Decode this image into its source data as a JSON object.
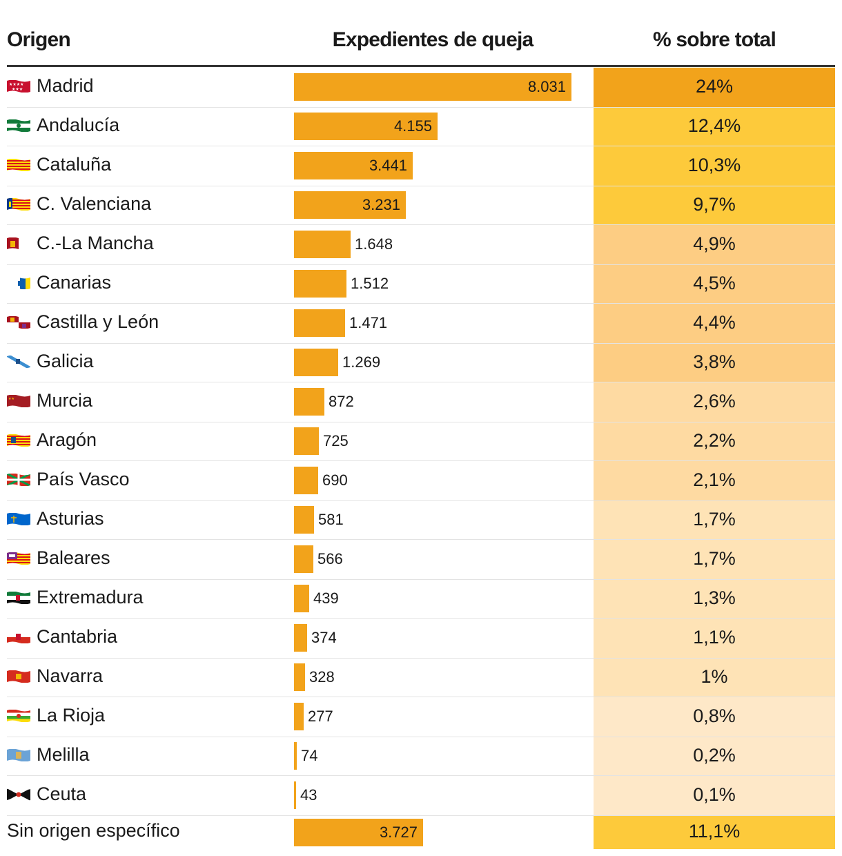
{
  "headers": {
    "origin": "Origen",
    "expedientes": "Expedientes de queja",
    "percent": "% sobre total"
  },
  "chart_data": {
    "type": "table",
    "columns": [
      "Origen",
      "Expedientes de queja",
      "% sobre total"
    ],
    "rows": [
      {
        "origin": "Madrid",
        "value": 8031,
        "value_label": "8.031",
        "percent": 24,
        "percent_label": "24%",
        "flag": "madrid-flag-icon",
        "cell_color": "#f2a31b"
      },
      {
        "origin": "Andalucía",
        "value": 4155,
        "value_label": "4.155",
        "percent": 12.4,
        "percent_label": "12,4%",
        "flag": "andalucia-flag-icon",
        "cell_color": "#fdca3b"
      },
      {
        "origin": "Cataluña",
        "value": 3441,
        "value_label": "3.441",
        "percent": 10.3,
        "percent_label": "10,3%",
        "flag": "cataluna-flag-icon",
        "cell_color": "#fdca3b"
      },
      {
        "origin": "C. Valenciana",
        "value": 3231,
        "value_label": "3.231",
        "percent": 9.7,
        "percent_label": "9,7%",
        "flag": "valenciana-flag-icon",
        "cell_color": "#fdca3b"
      },
      {
        "origin": "C.-La Mancha",
        "value": 1648,
        "value_label": "1.648",
        "percent": 4.9,
        "percent_label": "4,9%",
        "flag": "castilla-la-mancha-flag-icon",
        "cell_color": "#fdcd83"
      },
      {
        "origin": "Canarias",
        "value": 1512,
        "value_label": "1.512",
        "percent": 4.5,
        "percent_label": "4,5%",
        "flag": "canarias-flag-icon",
        "cell_color": "#fdcd83"
      },
      {
        "origin": "Castilla y León",
        "value": 1471,
        "value_label": "1.471",
        "percent": 4.4,
        "percent_label": "4,4%",
        "flag": "castilla-y-leon-flag-icon",
        "cell_color": "#fdcd83"
      },
      {
        "origin": "Galicia",
        "value": 1269,
        "value_label": "1.269",
        "percent": 3.8,
        "percent_label": "3,8%",
        "flag": "galicia-flag-icon",
        "cell_color": "#fdcd83"
      },
      {
        "origin": "Murcia",
        "value": 872,
        "value_label": "872",
        "percent": 2.6,
        "percent_label": "2,6%",
        "flag": "murcia-flag-icon",
        "cell_color": "#fedaa2"
      },
      {
        "origin": "Aragón",
        "value": 725,
        "value_label": "725",
        "percent": 2.2,
        "percent_label": "2,2%",
        "flag": "aragon-flag-icon",
        "cell_color": "#fedaa2"
      },
      {
        "origin": "País Vasco",
        "value": 690,
        "value_label": "690",
        "percent": 2.1,
        "percent_label": "2,1%",
        "flag": "pais-vasco-flag-icon",
        "cell_color": "#fedaa2"
      },
      {
        "origin": "Asturias",
        "value": 581,
        "value_label": "581",
        "percent": 1.7,
        "percent_label": "1,7%",
        "flag": "asturias-flag-icon",
        "cell_color": "#fee3b6"
      },
      {
        "origin": "Baleares",
        "value": 566,
        "value_label": "566",
        "percent": 1.7,
        "percent_label": "1,7%",
        "flag": "baleares-flag-icon",
        "cell_color": "#fee3b6"
      },
      {
        "origin": "Extremadura",
        "value": 439,
        "value_label": "439",
        "percent": 1.3,
        "percent_label": "1,3%",
        "flag": "extremadura-flag-icon",
        "cell_color": "#fee3b6"
      },
      {
        "origin": "Cantabria",
        "value": 374,
        "value_label": "374",
        "percent": 1.1,
        "percent_label": "1,1%",
        "flag": "cantabria-flag-icon",
        "cell_color": "#fee3b6"
      },
      {
        "origin": "Navarra",
        "value": 328,
        "value_label": "328",
        "percent": 1,
        "percent_label": "1%",
        "flag": "navarra-flag-icon",
        "cell_color": "#fee3b6"
      },
      {
        "origin": "La Rioja",
        "value": 277,
        "value_label": "277",
        "percent": 0.8,
        "percent_label": "0,8%",
        "flag": "la-rioja-flag-icon",
        "cell_color": "#fee8c8"
      },
      {
        "origin": "Melilla",
        "value": 74,
        "value_label": "74",
        "percent": 0.2,
        "percent_label": "0,2%",
        "flag": "melilla-flag-icon",
        "cell_color": "#fee8c8"
      },
      {
        "origin": "Ceuta",
        "value": 43,
        "value_label": "43",
        "percent": 0.1,
        "percent_label": "0,1%",
        "flag": "ceuta-flag-icon",
        "cell_color": "#fee8c8"
      },
      {
        "origin": "Sin origen específico",
        "value": 3727,
        "value_label": "3.727",
        "percent": 11.1,
        "percent_label": "11,1%",
        "flag": null,
        "cell_color": "#fdca3b"
      }
    ],
    "max_value": 8031,
    "bar_color": "#f2a31b"
  }
}
